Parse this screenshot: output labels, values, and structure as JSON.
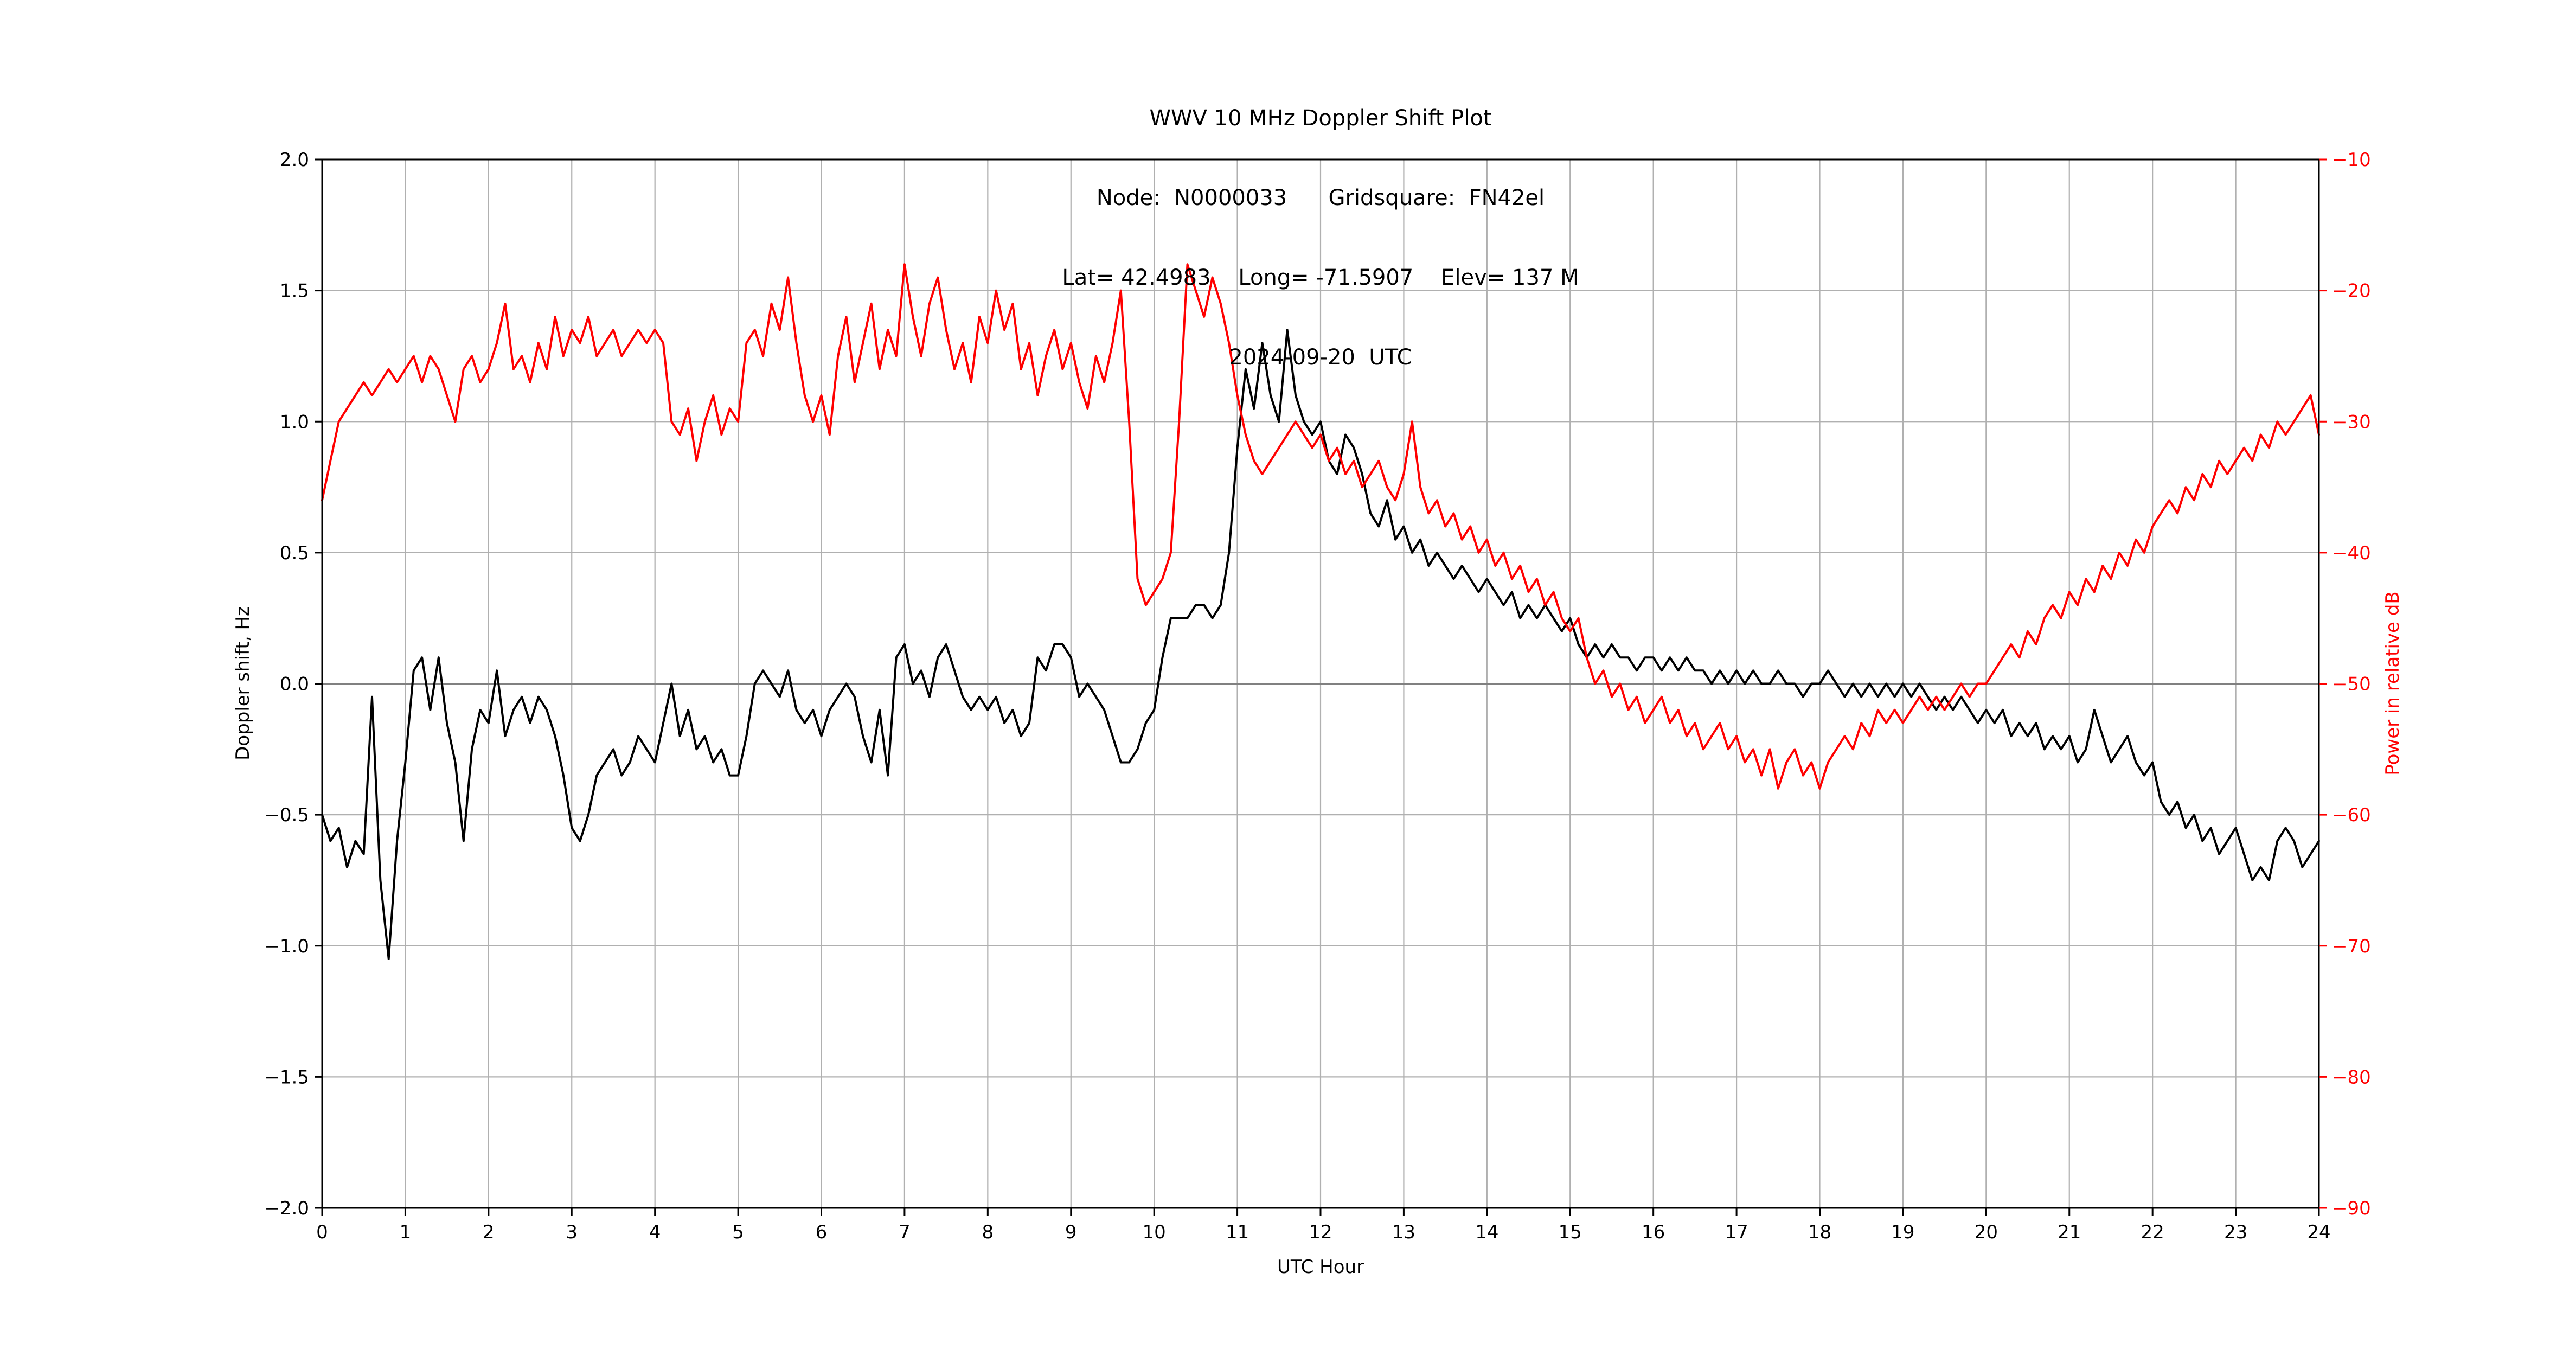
{
  "page": {
    "background": "#ffffff"
  },
  "chart_data": {
    "type": "line",
    "title": "WWV 10 MHz Doppler Shift Plot",
    "subtitle_node": "Node:  N0000033      Gridsquare:  FN42el",
    "subtitle_location": "Lat= 42.4983    Long= -71.5907    Elev= 137 M",
    "subtitle_date": "2024-09-20  UTC",
    "xlabel": "UTC Hour",
    "ylabel_left": "Doppler shift, Hz",
    "ylabel_right": "Power in relative dB",
    "x_range": [
      0,
      24
    ],
    "y_left_range": [
      -2.0,
      2.0
    ],
    "y_right_range": [
      -90,
      -10
    ],
    "grid": true,
    "legend": "none",
    "colors": {
      "doppler_line": "#000000",
      "power_line": "#ff0000",
      "grid": "#b0b0b0",
      "zero_line": "#808080",
      "axis": "#000000",
      "right_axis_text": "#ff0000"
    },
    "x_ticks": [
      {
        "v": 0,
        "label": "0"
      },
      {
        "v": 1,
        "label": "1"
      },
      {
        "v": 2,
        "label": "2"
      },
      {
        "v": 3,
        "label": "3"
      },
      {
        "v": 4,
        "label": "4"
      },
      {
        "v": 5,
        "label": "5"
      },
      {
        "v": 6,
        "label": "6"
      },
      {
        "v": 7,
        "label": "7"
      },
      {
        "v": 8,
        "label": "8"
      },
      {
        "v": 9,
        "label": "9"
      },
      {
        "v": 10,
        "label": "10"
      },
      {
        "v": 11,
        "label": "11"
      },
      {
        "v": 12,
        "label": "12"
      },
      {
        "v": 13,
        "label": "13"
      },
      {
        "v": 14,
        "label": "14"
      },
      {
        "v": 15,
        "label": "15"
      },
      {
        "v": 16,
        "label": "16"
      },
      {
        "v": 17,
        "label": "17"
      },
      {
        "v": 18,
        "label": "18"
      },
      {
        "v": 19,
        "label": "19"
      },
      {
        "v": 20,
        "label": "20"
      },
      {
        "v": 21,
        "label": "21"
      },
      {
        "v": 22,
        "label": "22"
      },
      {
        "v": 23,
        "label": "23"
      },
      {
        "v": 24,
        "label": "24"
      }
    ],
    "y_left_ticks": [
      {
        "v": 2.0,
        "label": "2.0"
      },
      {
        "v": 1.5,
        "label": "1.5"
      },
      {
        "v": 1.0,
        "label": "1.0"
      },
      {
        "v": 0.5,
        "label": "0.5"
      },
      {
        "v": 0.0,
        "label": "0.0"
      },
      {
        "v": -0.5,
        "label": "−0.5"
      },
      {
        "v": -1.0,
        "label": "−1.0"
      },
      {
        "v": -1.5,
        "label": "−1.5"
      },
      {
        "v": -2.0,
        "label": "−2.0"
      }
    ],
    "y_right_ticks": [
      {
        "v": -10,
        "label": "−10"
      },
      {
        "v": -20,
        "label": "−20"
      },
      {
        "v": -30,
        "label": "−30"
      },
      {
        "v": -40,
        "label": "−40"
      },
      {
        "v": -50,
        "label": "−50"
      },
      {
        "v": -60,
        "label": "−60"
      },
      {
        "v": -70,
        "label": "−70"
      },
      {
        "v": -80,
        "label": "−80"
      },
      {
        "v": -90,
        "label": "−90"
      }
    ],
    "series": [
      {
        "name": "Doppler shift",
        "id": "doppler-shift",
        "axis": "left",
        "color": "#000000",
        "x_start": 0,
        "x_step": 0.1,
        "values": [
          -0.5,
          -0.6,
          -0.55,
          -0.7,
          -0.6,
          -0.65,
          -0.05,
          -0.75,
          -1.05,
          -0.6,
          -0.3,
          0.05,
          0.1,
          -0.1,
          0.1,
          -0.15,
          -0.3,
          -0.6,
          -0.25,
          -0.1,
          -0.15,
          0.05,
          -0.2,
          -0.1,
          -0.05,
          -0.15,
          -0.05,
          -0.1,
          -0.2,
          -0.35,
          -0.55,
          -0.6,
          -0.5,
          -0.35,
          -0.3,
          -0.25,
          -0.35,
          -0.3,
          -0.2,
          -0.25,
          -0.3,
          -0.15,
          0.0,
          -0.2,
          -0.1,
          -0.25,
          -0.2,
          -0.3,
          -0.25,
          -0.35,
          -0.35,
          -0.2,
          0.0,
          0.05,
          0.0,
          -0.05,
          0.05,
          -0.1,
          -0.15,
          -0.1,
          -0.2,
          -0.1,
          -0.05,
          0.0,
          -0.05,
          -0.2,
          -0.3,
          -0.1,
          -0.35,
          0.1,
          0.15,
          0.0,
          0.05,
          -0.05,
          0.1,
          0.15,
          0.05,
          -0.05,
          -0.1,
          -0.05,
          -0.1,
          -0.05,
          -0.15,
          -0.1,
          -0.2,
          -0.15,
          0.1,
          0.05,
          0.15,
          0.15,
          0.1,
          -0.05,
          0.0,
          -0.05,
          -0.1,
          -0.2,
          -0.3,
          -0.3,
          -0.25,
          -0.15,
          -0.1,
          0.1,
          0.25,
          0.25,
          0.25,
          0.3,
          0.3,
          0.25,
          0.3,
          0.5,
          0.9,
          1.2,
          1.05,
          1.3,
          1.1,
          1.0,
          1.35,
          1.1,
          1.0,
          0.95,
          1.0,
          0.85,
          0.8,
          0.95,
          0.9,
          0.8,
          0.65,
          0.6,
          0.7,
          0.55,
          0.6,
          0.5,
          0.55,
          0.45,
          0.5,
          0.45,
          0.4,
          0.45,
          0.4,
          0.35,
          0.4,
          0.35,
          0.3,
          0.35,
          0.25,
          0.3,
          0.25,
          0.3,
          0.25,
          0.2,
          0.25,
          0.15,
          0.1,
          0.15,
          0.1,
          0.15,
          0.1,
          0.1,
          0.05,
          0.1,
          0.1,
          0.05,
          0.1,
          0.05,
          0.1,
          0.05,
          0.05,
          0.0,
          0.05,
          0.0,
          0.05,
          0.0,
          0.05,
          0.0,
          0.0,
          0.05,
          0.0,
          0.0,
          -0.05,
          0.0,
          0.0,
          0.05,
          0.0,
          -0.05,
          0.0,
          -0.05,
          0.0,
          -0.05,
          0.0,
          -0.05,
          0.0,
          -0.05,
          0.0,
          -0.05,
          -0.1,
          -0.05,
          -0.1,
          -0.05,
          -0.1,
          -0.15,
          -0.1,
          -0.15,
          -0.1,
          -0.2,
          -0.15,
          -0.2,
          -0.15,
          -0.25,
          -0.2,
          -0.25,
          -0.2,
          -0.3,
          -0.25,
          -0.1,
          -0.2,
          -0.3,
          -0.25,
          -0.2,
          -0.3,
          -0.35,
          -0.3,
          -0.45,
          -0.5,
          -0.45,
          -0.55,
          -0.5,
          -0.6,
          -0.55,
          -0.65,
          -0.6,
          -0.55,
          -0.65,
          -0.75,
          -0.7,
          -0.75,
          -0.6,
          -0.55,
          -0.6,
          -0.7,
          -0.65,
          -0.6
        ]
      },
      {
        "name": "Power",
        "id": "power",
        "axis": "right",
        "color": "#ff0000",
        "x_start": 0,
        "x_step": 0.1,
        "values": [
          -36,
          -33,
          -30,
          -29,
          -28,
          -27,
          -28,
          -27,
          -26,
          -27,
          -26,
          -25,
          -27,
          -25,
          -26,
          -28,
          -30,
          -26,
          -25,
          -27,
          -26,
          -24,
          -21,
          -26,
          -25,
          -27,
          -24,
          -26,
          -22,
          -25,
          -23,
          -24,
          -22,
          -25,
          -24,
          -23,
          -25,
          -24,
          -23,
          -24,
          -23,
          -24,
          -30,
          -31,
          -29,
          -33,
          -30,
          -28,
          -31,
          -29,
          -30,
          -24,
          -23,
          -25,
          -21,
          -23,
          -19,
          -24,
          -28,
          -30,
          -28,
          -31,
          -25,
          -22,
          -27,
          -24,
          -21,
          -26,
          -23,
          -25,
          -18,
          -22,
          -25,
          -21,
          -19,
          -23,
          -26,
          -24,
          -27,
          -22,
          -24,
          -20,
          -23,
          -21,
          -26,
          -24,
          -28,
          -25,
          -23,
          -26,
          -24,
          -27,
          -29,
          -25,
          -27,
          -24,
          -20,
          -30,
          -42,
          -44,
          -43,
          -42,
          -40,
          -30,
          -18,
          -20,
          -22,
          -19,
          -21,
          -24,
          -28,
          -31,
          -33,
          -34,
          -33,
          -32,
          -31,
          -30,
          -31,
          -32,
          -31,
          -33,
          -32,
          -34,
          -33,
          -35,
          -34,
          -33,
          -35,
          -36,
          -34,
          -30,
          -35,
          -37,
          -36,
          -38,
          -37,
          -39,
          -38,
          -40,
          -39,
          -41,
          -40,
          -42,
          -41,
          -43,
          -42,
          -44,
          -43,
          -45,
          -46,
          -45,
          -48,
          -50,
          -49,
          -51,
          -50,
          -52,
          -51,
          -53,
          -52,
          -51,
          -53,
          -52,
          -54,
          -53,
          -55,
          -54,
          -53,
          -55,
          -54,
          -56,
          -55,
          -57,
          -55,
          -58,
          -56,
          -55,
          -57,
          -56,
          -58,
          -56,
          -55,
          -54,
          -55,
          -53,
          -54,
          -52,
          -53,
          -52,
          -53,
          -52,
          -51,
          -52,
          -51,
          -52,
          -51,
          -50,
          -51,
          -50,
          -50,
          -49,
          -48,
          -47,
          -48,
          -46,
          -47,
          -45,
          -44,
          -45,
          -43,
          -44,
          -42,
          -43,
          -41,
          -42,
          -40,
          -41,
          -39,
          -40,
          -38,
          -37,
          -36,
          -37,
          -35,
          -36,
          -34,
          -35,
          -33,
          -34,
          -33,
          -32,
          -33,
          -31,
          -32,
          -30,
          -31,
          -30,
          -29,
          -28,
          -31
        ]
      }
    ]
  }
}
